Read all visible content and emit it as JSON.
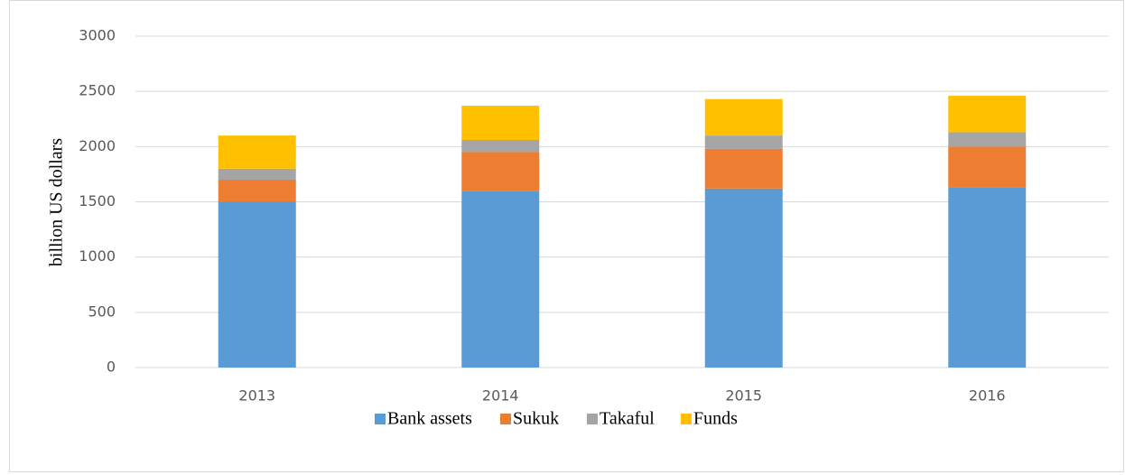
{
  "chart_data": {
    "type": "stacked_bar",
    "y_label": "billion US dollars",
    "categories": [
      "2013",
      "2014",
      "2015",
      "2016"
    ],
    "series": [
      {
        "name": "Bank assets",
        "color": "#5b9bd5",
        "values": [
          1500,
          1600,
          1620,
          1630
        ]
      },
      {
        "name": "Sukuk",
        "color": "#ed7d31",
        "values": [
          200,
          350,
          360,
          370
        ]
      },
      {
        "name": "Takaful",
        "color": "#a5a5a5",
        "values": [
          100,
          110,
          120,
          130
        ]
      },
      {
        "name": "Funds",
        "color": "#ffc000",
        "values": [
          300,
          310,
          330,
          330
        ]
      }
    ],
    "ylim": [
      0,
      3000
    ],
    "yticks": [
      0,
      500,
      1000,
      1500,
      2000,
      2500,
      3000
    ],
    "grid": true,
    "legend": "bottom"
  }
}
